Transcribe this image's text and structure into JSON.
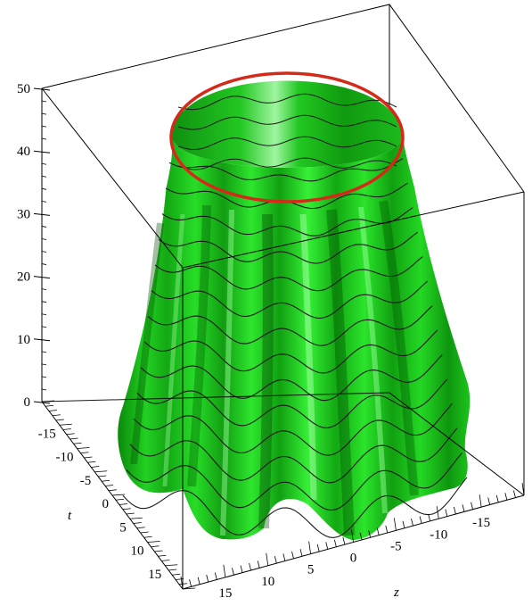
{
  "chart_data": {
    "type": "surface3d",
    "axes": {
      "vertical": {
        "label": "",
        "range": [
          0,
          50
        ],
        "ticks": [
          0,
          10,
          20,
          30,
          40,
          50
        ]
      },
      "t": {
        "label": "t",
        "range": [
          -20,
          20
        ],
        "ticks": [
          -15,
          -10,
          -5,
          0,
          5,
          10,
          15
        ]
      },
      "z": {
        "label": "z",
        "range": [
          -20,
          20
        ],
        "ticks": [
          15,
          10,
          5,
          0,
          -5,
          -10,
          -15
        ]
      }
    },
    "surface": {
      "description": "fluted conical skirt surface",
      "top_radius": 10,
      "bottom_radius": 20,
      "height": 50,
      "flutes": 8,
      "color": "#1fd11f",
      "contour_color": "#1a1a1a",
      "top_rim_color": "#d42a1a"
    },
    "box": true,
    "grid": false
  }
}
